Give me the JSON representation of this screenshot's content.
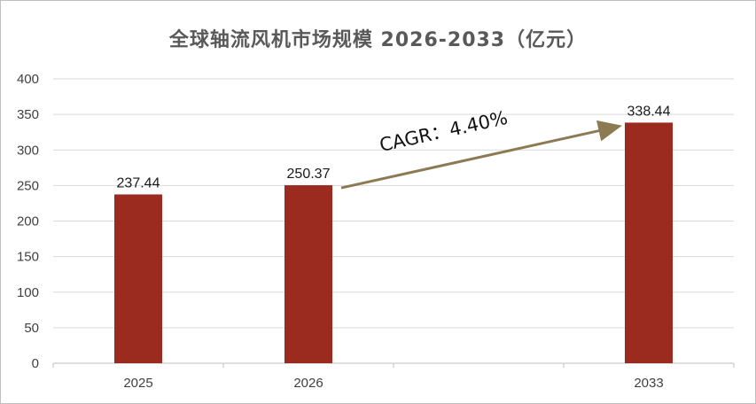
{
  "chart_data": {
    "type": "bar",
    "title": "全球轴流风机市场规模 2026-2033（亿元）",
    "categories": [
      "2025",
      "2026",
      "",
      "2033"
    ],
    "values": [
      237.44,
      250.37,
      null,
      338.44
    ],
    "value_labels": [
      "237.44",
      "250.37",
      "",
      "338.44"
    ],
    "xlabel": "",
    "ylabel": "",
    "ylim": [
      0,
      400
    ],
    "yticks": [
      0,
      50,
      100,
      150,
      200,
      250,
      300,
      350,
      400
    ],
    "grid": true,
    "legend": "none",
    "annotation": {
      "text": "CAGR：4.40%",
      "from_category": "2026",
      "to_category": "2033"
    },
    "colors": {
      "bar": "#9b2a1f",
      "arrow": "#8c7a52",
      "grid": "#d9d9d9",
      "axis": "#bfbfbf"
    }
  }
}
